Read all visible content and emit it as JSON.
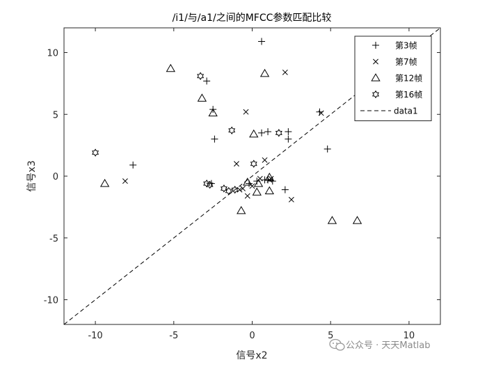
{
  "chart_data": {
    "type": "scatter",
    "title": "/i1/与/a1/之间的MFCC参数匹配比较",
    "xlabel": "信号x2",
    "ylabel": "信号x3",
    "xlim": [
      -12,
      12
    ],
    "ylim": [
      -12,
      12
    ],
    "xticks": [
      -10,
      -5,
      0,
      5,
      10
    ],
    "yticks": [
      -10,
      -5,
      0,
      5,
      10
    ],
    "xtick_labels": [
      "-10",
      "-5",
      "0",
      "5",
      "10"
    ],
    "ytick_labels": [
      "-10",
      "-5",
      "0",
      "5",
      "10"
    ],
    "grid": false,
    "legend_position": "top-right",
    "series": [
      {
        "name": "第3帧",
        "marker": "plus",
        "points": [
          [
            0.6,
            10.9
          ],
          [
            -2.9,
            7.7
          ],
          [
            -2.5,
            5.4
          ],
          [
            -2.4,
            3.0
          ],
          [
            0.6,
            3.5
          ],
          [
            1.0,
            3.6
          ],
          [
            2.3,
            3.6
          ],
          [
            2.3,
            3.0
          ],
          [
            4.3,
            5.2
          ],
          [
            4.8,
            2.2
          ],
          [
            -7.6,
            0.9
          ],
          [
            -2.6,
            -0.6
          ],
          [
            0.3,
            -0.4
          ],
          [
            0.8,
            -0.3
          ],
          [
            1.0,
            -0.3
          ],
          [
            1.3,
            -0.4
          ],
          [
            2.1,
            -1.1
          ],
          [
            -0.2,
            -0.6
          ]
        ]
      },
      {
        "name": "第7帧",
        "marker": "x",
        "points": [
          [
            2.1,
            8.4
          ],
          [
            -0.4,
            5.2
          ],
          [
            4.4,
            5.1
          ],
          [
            -1.0,
            1.0
          ],
          [
            0.8,
            1.3
          ],
          [
            -8.1,
            -0.4
          ],
          [
            -0.8,
            -1.1
          ],
          [
            -0.3,
            -1.6
          ],
          [
            0.0,
            -0.8
          ],
          [
            0.5,
            -0.2
          ],
          [
            1.1,
            -0.3
          ],
          [
            2.5,
            -1.9
          ],
          [
            -0.6,
            -1.0
          ],
          [
            1.2,
            -0.2
          ]
        ]
      },
      {
        "name": "第12帧",
        "marker": "triangle",
        "points": [
          [
            -5.2,
            8.7
          ],
          [
            0.8,
            8.3
          ],
          [
            -3.2,
            6.3
          ],
          [
            -2.5,
            5.1
          ],
          [
            0.1,
            3.4
          ],
          [
            -9.4,
            -0.6
          ],
          [
            -0.3,
            -0.5
          ],
          [
            0.4,
            -0.6
          ],
          [
            1.1,
            -0.1
          ],
          [
            1.1,
            -1.2
          ],
          [
            0.3,
            -1.3
          ],
          [
            -0.7,
            -2.8
          ],
          [
            5.1,
            -3.6
          ],
          [
            6.7,
            -3.6
          ]
        ]
      },
      {
        "name": "第16帧",
        "marker": "hexagram",
        "points": [
          [
            -3.3,
            8.1
          ],
          [
            -1.3,
            3.7
          ],
          [
            1.7,
            3.5
          ],
          [
            -10.0,
            1.9
          ],
          [
            0.1,
            1.0
          ],
          [
            -2.9,
            -0.6
          ],
          [
            -2.7,
            -0.7
          ],
          [
            -1.8,
            -1.0
          ],
          [
            -1.5,
            -1.2
          ],
          [
            -1.1,
            -1.1
          ]
        ]
      },
      {
        "name": "data1",
        "type": "line",
        "style": "dashed",
        "points": [
          [
            -12,
            -12
          ],
          [
            12,
            12
          ]
        ]
      }
    ]
  },
  "watermark": {
    "text": "公众号 · 天天Matlab"
  }
}
